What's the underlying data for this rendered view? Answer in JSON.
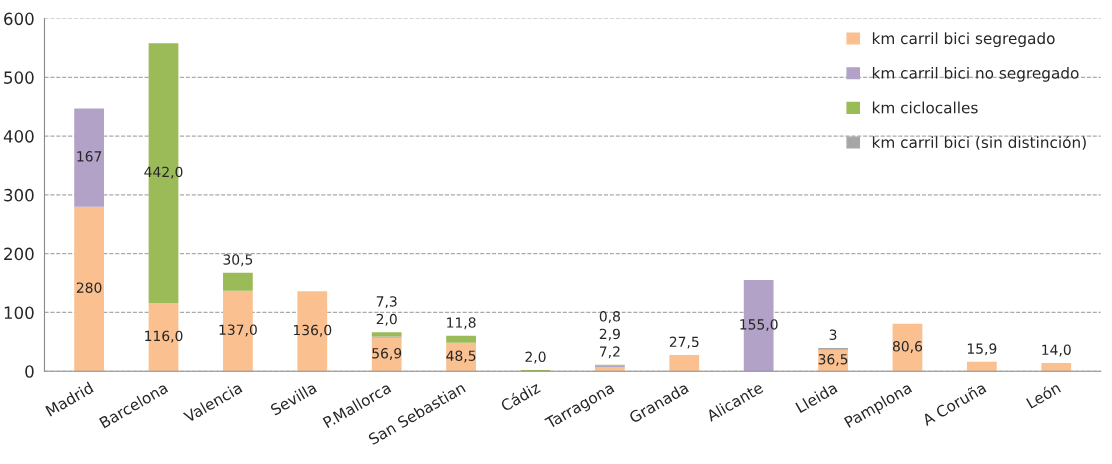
{
  "chart_data": {
    "type": "bar",
    "stacked": true,
    "categories": [
      "Madrid",
      "Barcelona",
      "Valencia",
      "Sevilla",
      "P.Mallorca",
      "San Sebastian",
      "Cádiz",
      "Tarragona",
      "Granada",
      "Alicante",
      "Lleida",
      "Pamplona",
      "A Coruña",
      "León"
    ],
    "series": [
      {
        "name": "km carril bici segregado",
        "color": "#fac090",
        "values": [
          280,
          116.0,
          137.0,
          136.0,
          56.9,
          48.5,
          null,
          7.2,
          27.5,
          null,
          36.5,
          80.6,
          15.9,
          14.0
        ],
        "value_labels": [
          "280",
          "116,0",
          "137,0",
          "136,0",
          "56,9",
          "48,5",
          null,
          "7,2",
          "27,5",
          null,
          "36,5",
          "80,6",
          "15,9",
          "14,0"
        ]
      },
      {
        "name": "km carril bici no segregado",
        "color": "#b3a2c7",
        "values": [
          167,
          null,
          null,
          null,
          2.0,
          null,
          null,
          2.9,
          null,
          155.0,
          null,
          null,
          null,
          null
        ],
        "value_labels": [
          "167",
          null,
          null,
          null,
          "2,0",
          null,
          null,
          "2,9",
          null,
          "155,0",
          null,
          null,
          null,
          null
        ]
      },
      {
        "name": "km ciclocalles",
        "color": "#9bbb59",
        "values": [
          null,
          442.0,
          30.5,
          null,
          7.3,
          11.8,
          2.0,
          0.8,
          null,
          null,
          null,
          null,
          null,
          null
        ],
        "value_labels": [
          null,
          "442,0",
          "30,5",
          null,
          "7,3",
          "11,8",
          "2,0",
          "0,8",
          null,
          null,
          null,
          null,
          null,
          null
        ]
      },
      {
        "name": "km carril bici (sin distinción)",
        "color": "#a6a6a6",
        "values": [
          null,
          null,
          null,
          null,
          null,
          null,
          null,
          null,
          null,
          null,
          3,
          null,
          null,
          null
        ],
        "value_labels": [
          null,
          null,
          null,
          null,
          null,
          null,
          null,
          null,
          null,
          null,
          "3",
          null,
          null,
          null
        ]
      }
    ],
    "ylim": [
      0,
      600
    ],
    "yticks": [
      0,
      100,
      200,
      300,
      400,
      500,
      600
    ],
    "grid": "y",
    "legend": "top right"
  }
}
